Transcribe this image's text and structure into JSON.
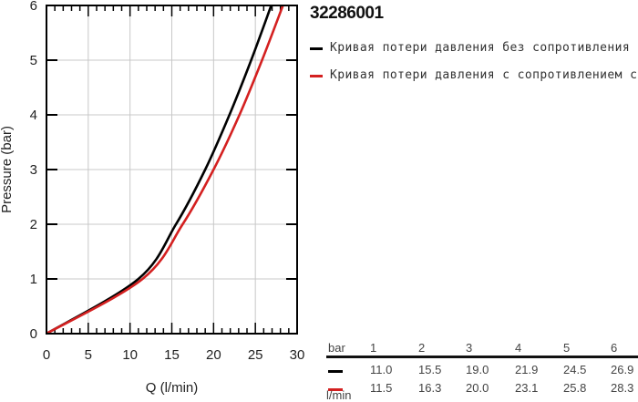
{
  "title": "32286001",
  "legend": {
    "items": [
      {
        "label": "Кривая потери давления без сопротивления",
        "color": "#000000"
      },
      {
        "label": "Кривая потери давления с сопротивлением с",
        "color": "#d42020"
      }
    ]
  },
  "table": {
    "header_label": "bar",
    "unit_label": "l/min",
    "pressures": [
      "1",
      "2",
      "3",
      "4",
      "5",
      "6"
    ],
    "rows": [
      {
        "color": "#000000",
        "values": [
          "11.0",
          "15.5",
          "19.0",
          "21.9",
          "24.5",
          "26.9"
        ]
      },
      {
        "color": "#d42020",
        "values": [
          "11.5",
          "16.3",
          "20.0",
          "23.1",
          "25.8",
          "28.3"
        ]
      }
    ]
  },
  "chart_data": {
    "type": "line",
    "title": "32286001",
    "xlabel": "Q (l/min)",
    "ylabel": "Pressure (bar)",
    "xlim": [
      0,
      30
    ],
    "ylim": [
      0,
      6
    ],
    "xticks": [
      0,
      5,
      10,
      15,
      20,
      25,
      30
    ],
    "yticks": [
      0,
      1,
      2,
      3,
      4,
      5,
      6
    ],
    "grid": true,
    "legend_position": "right",
    "series": [
      {
        "name": "Кривая потери давления без сопротивления",
        "color": "#000000",
        "x": [
          0,
          11.0,
          15.5,
          19.0,
          21.9,
          24.5,
          26.9
        ],
        "y": [
          0,
          1,
          2,
          3,
          4,
          5,
          6
        ]
      },
      {
        "name": "Кривая потери давления с сопротивлением с",
        "color": "#d42020",
        "x": [
          0,
          11.5,
          16.3,
          20.0,
          23.1,
          25.8,
          28.3
        ],
        "y": [
          0,
          1,
          2,
          3,
          4,
          5,
          6
        ]
      }
    ]
  }
}
